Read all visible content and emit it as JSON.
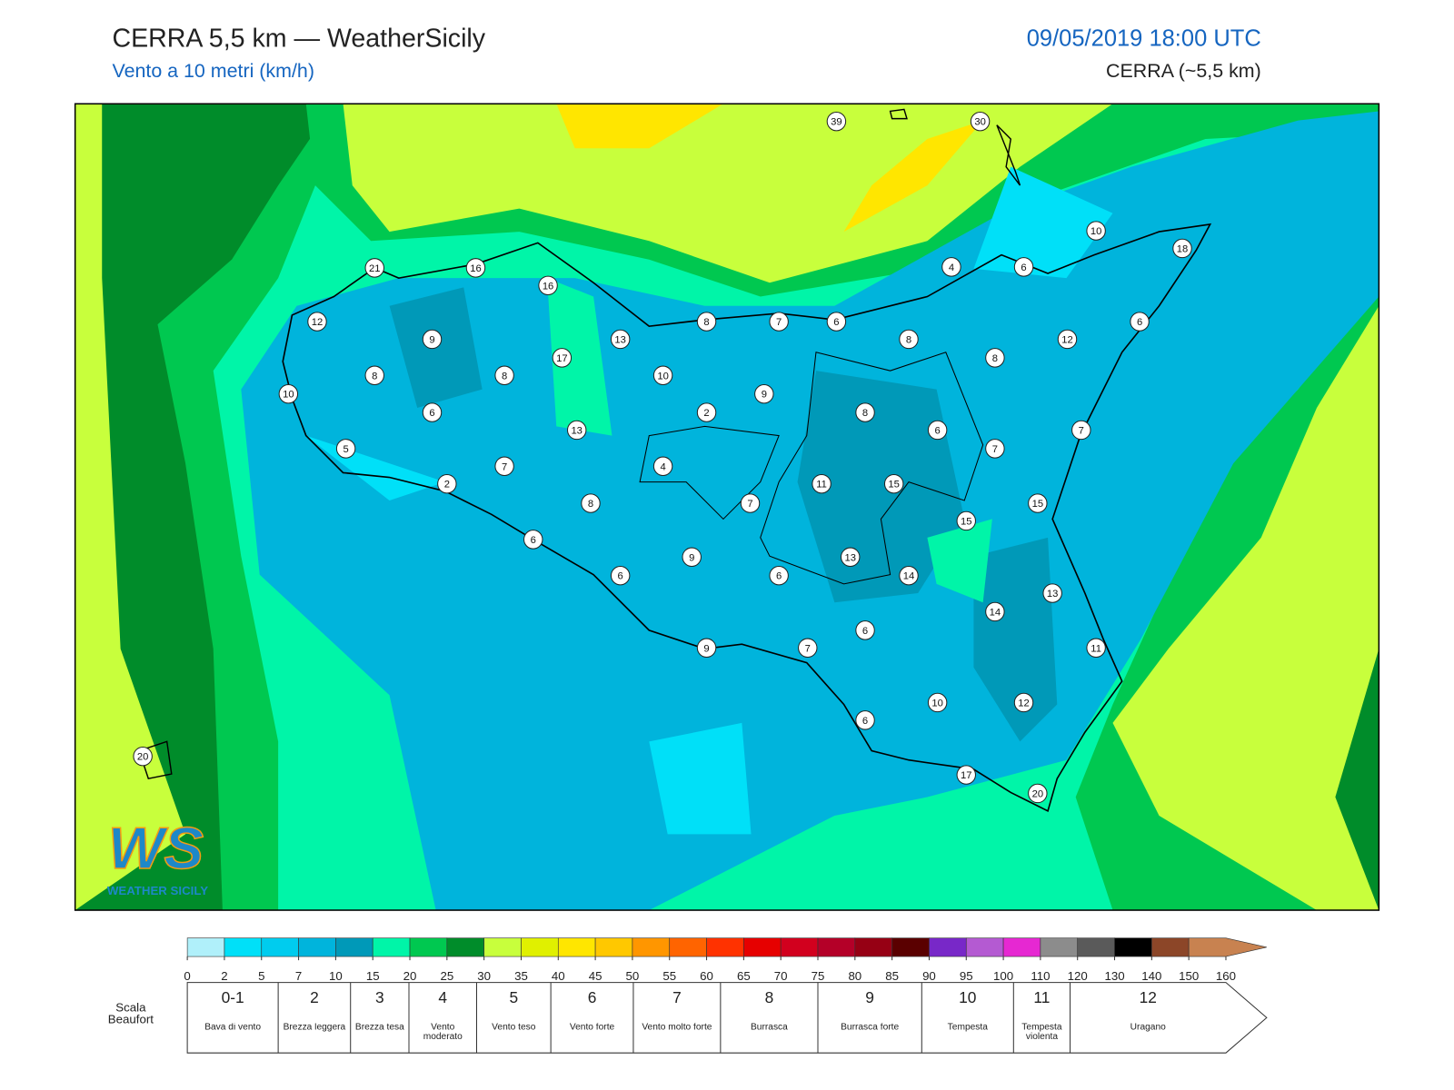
{
  "header": {
    "title": "CERRA 5,5 km — WeatherSicily",
    "subtitle": "Vento a 10 metri (km/h)",
    "datetime": "09/05/2019 18:00 UTC",
    "model": "CERRA (~5,5 km)"
  },
  "map": {
    "stations": [
      39,
      30,
      10,
      18,
      21,
      16,
      16,
      4,
      6,
      12,
      9,
      13,
      8,
      7,
      6,
      8,
      12,
      6,
      17,
      8,
      8,
      8,
      10,
      9,
      10,
      6,
      2,
      8,
      6,
      7,
      13,
      5,
      7,
      7,
      4,
      2,
      11,
      15,
      8,
      7,
      15,
      15,
      6,
      9,
      13,
      6,
      6,
      14,
      13,
      14,
      6,
      9,
      7,
      11,
      10,
      12,
      6,
      20,
      17,
      20
    ]
  },
  "logo": {
    "mark": "WS",
    "text": "WEATHER SICILY"
  },
  "colorbar": {
    "ticks": [
      0,
      2,
      5,
      7,
      10,
      15,
      20,
      25,
      30,
      35,
      40,
      45,
      50,
      55,
      60,
      65,
      70,
      75,
      80,
      85,
      90,
      95,
      100,
      110,
      120,
      130,
      140,
      150,
      160
    ],
    "colors": [
      "#b0f0fa",
      "#00e0f8",
      "#00ccee",
      "#00b4dc",
      "#0099b8",
      "#00f5a8",
      "#00c850",
      "#008c2a",
      "#c8ff3c",
      "#e0f000",
      "#ffe600",
      "#ffc800",
      "#ff9600",
      "#ff6400",
      "#ff3200",
      "#e60000",
      "#d2001e",
      "#b40028",
      "#960014",
      "#5a0000",
      "#7828c8",
      "#b45ad2",
      "#e628d2",
      "#8c8c8c",
      "#5a5a5a",
      "#000000",
      "#8c4628",
      "#c88250"
    ]
  },
  "beaufort": {
    "label": "Scala Beaufort",
    "levels": [
      {
        "force": "0-1",
        "name": "Bava di vento"
      },
      {
        "force": "2",
        "name": "Brezza leggera"
      },
      {
        "force": "3",
        "name": "Brezza tesa"
      },
      {
        "force": "4",
        "name": "Vento moderato"
      },
      {
        "force": "5",
        "name": "Vento teso"
      },
      {
        "force": "6",
        "name": "Vento forte"
      },
      {
        "force": "7",
        "name": "Vento molto forte"
      },
      {
        "force": "8",
        "name": "Burrasca"
      },
      {
        "force": "9",
        "name": "Burrasca forte"
      },
      {
        "force": "10",
        "name": "Tempesta"
      },
      {
        "force": "11",
        "name": "Tempesta violenta"
      },
      {
        "force": "12",
        "name": "Uragano"
      }
    ]
  }
}
